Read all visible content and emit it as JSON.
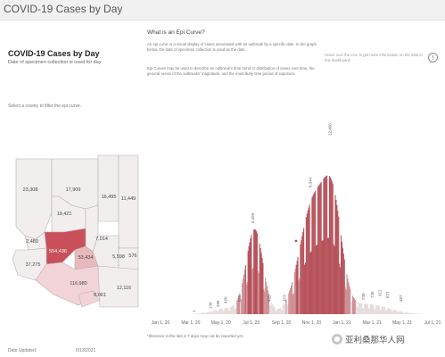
{
  "app": {
    "title": "COVID-19 Cases by Day"
  },
  "left_panel": {
    "title": "COVID-19 Cases by Day",
    "subtitle": "Date of specimen collection is used for day",
    "filter_hint": "Select a county to filter the epi curve.",
    "updated_label": "Date Updated:",
    "updated_value": "6/13/2021"
  },
  "map": {
    "counties": [
      {
        "name": "mohave",
        "value": "23,308"
      },
      {
        "name": "coconino",
        "value": "17,909"
      },
      {
        "name": "navajo",
        "value": "16,495"
      },
      {
        "name": "apache",
        "value": "11,449"
      },
      {
        "name": "yavapai",
        "value": "19,421"
      },
      {
        "name": "la-paz",
        "value": "2,480"
      },
      {
        "name": "gila",
        "value": "7,014"
      },
      {
        "name": "maricopa",
        "value": "554,436"
      },
      {
        "name": "pinal",
        "value": "53,434"
      },
      {
        "name": "graham",
        "value": "5,598"
      },
      {
        "name": "greenlee",
        "value": "576"
      },
      {
        "name": "yuma",
        "value": "37,275"
      },
      {
        "name": "pima",
        "value": "116,980"
      },
      {
        "name": "santa-cruz",
        "value": "8,061"
      },
      {
        "name": "cochise",
        "value": "12,116"
      }
    ],
    "colors": {
      "default": "#f3eeee",
      "highlight": "#c9505a",
      "light": "#f2d4d8",
      "mid": "#e8b8bd"
    }
  },
  "about": {
    "title": "What is an Epi Curve?",
    "para1": "An epi curve is a visual display of cases associated with an outbreak by a specific date. In the graph below, the date of specimen collection is used as the date.",
    "para2": "Epi Curves may be used to describe an outbreak's time trend or distribution of cases over time, the general sense of the outbreaks' magnitude, and the most likely time period of exposure.",
    "hover_hint": "Hover over the icon to get more information on the data in this dashboard.",
    "info_icon": "info-icon"
  },
  "chart_data": {
    "type": "bar",
    "x_ticks": [
      "Jan 1, 20",
      "Mar 1, 20",
      "May 1, 20",
      "Jul 1, 20",
      "Sep 1, 20",
      "Nov 1, 20",
      "Jan 1, 21",
      "Mar 1, 21",
      "May 1, 21",
      "Jul 1, 21"
    ],
    "peak_labels": [
      {
        "month": 2.3,
        "value": "1"
      },
      {
        "month": 3.4,
        "value": "130"
      },
      {
        "month": 3.9,
        "value": "299"
      },
      {
        "month": 4.4,
        "value": "420"
      },
      {
        "month": 5.3,
        "value": "558"
      },
      {
        "month": 6.2,
        "value": "5,493"
      },
      {
        "month": 7.3,
        "value": "465"
      },
      {
        "month": 8.3,
        "value": "373"
      },
      {
        "month": 10.0,
        "value": "8,344"
      },
      {
        "month": 11.3,
        "value": "12,406"
      },
      {
        "month": 13.5,
        "value": "730"
      },
      {
        "month": 14.1,
        "value": "735"
      },
      {
        "month": 14.6,
        "value": "912"
      },
      {
        "month": 15.1,
        "value": "677"
      },
      {
        "month": 16.0,
        "value": "487"
      }
    ],
    "ylim": [
      0,
      13500
    ],
    "grid": false,
    "bar_colors": {
      "base": "#e6dcdc",
      "peak": "#cf8f95",
      "dark": "#b7525b"
    },
    "footnote": "*Illnesses in the last 4-7 days may not be reported yet."
  },
  "watermark": {
    "text": "亚利桑那华人网",
    "icon": "wechat-icon"
  }
}
